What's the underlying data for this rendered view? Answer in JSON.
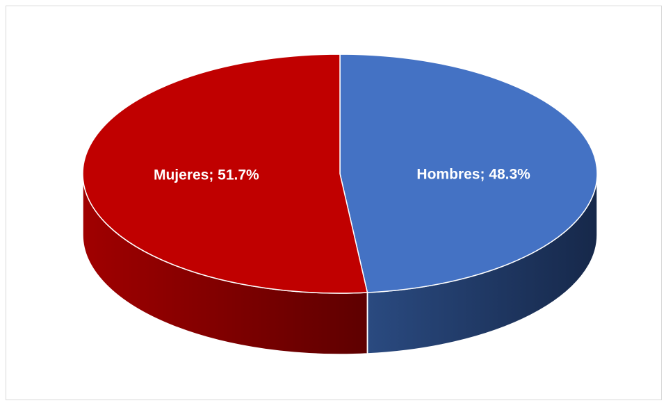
{
  "chart_data": {
    "type": "pie",
    "style": "3d",
    "categories": [
      "Mujeres",
      "Hombres"
    ],
    "values": [
      51.7,
      48.3
    ],
    "unit": "%",
    "colors": {
      "Mujeres": "#c00000",
      "Hombres": "#4472c4"
    },
    "side_colors": {
      "Mujeres": "#8b0000",
      "Hombres": "#1f3864"
    },
    "data_labels": [
      "Mujeres; 51.7%",
      "Hombres; 48.3%"
    ],
    "legend": "none",
    "title": ""
  }
}
